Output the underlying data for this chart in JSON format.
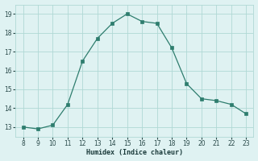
{
  "x": [
    8,
    9,
    10,
    11,
    12,
    13,
    14,
    15,
    16,
    17,
    18,
    19,
    20,
    21,
    22,
    23
  ],
  "y": [
    13.0,
    12.9,
    13.1,
    14.2,
    16.5,
    17.7,
    18.5,
    19.0,
    18.6,
    18.5,
    17.2,
    15.3,
    14.5,
    14.4,
    14.2,
    13.7
  ],
  "line_color": "#2e7d6e",
  "bg_color": "#dff2f2",
  "grid_color": "#b0d8d5",
  "xlabel": "Humidex (Indice chaleur)",
  "xlim": [
    7.5,
    23.5
  ],
  "ylim": [
    12.5,
    19.5
  ],
  "xticks": [
    8,
    9,
    10,
    11,
    12,
    13,
    14,
    15,
    16,
    17,
    18,
    19,
    20,
    21,
    22,
    23
  ],
  "yticks": [
    13,
    14,
    15,
    16,
    17,
    18,
    19
  ]
}
